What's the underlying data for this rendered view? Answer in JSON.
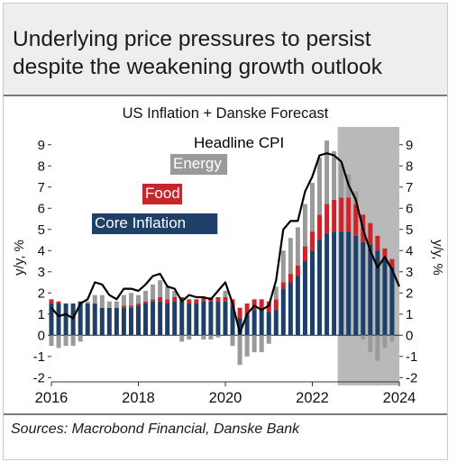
{
  "headline": "Underlying price pressures to persist despite the weakening growth outlook",
  "source": "Sources: Macrobond Financial, Danske Bank",
  "colors": {
    "core": "#1d3f68",
    "food": "#c8262b",
    "energy": "#9a9a9a",
    "headline": "#000000",
    "forecast_shade": "#b9b9b9",
    "header_bg": "#eeeeee"
  },
  "chart_data": {
    "type": "bar",
    "stacked": true,
    "title": "US Inflation + Danske Forecast",
    "ylabel_left": "y/y, %",
    "ylabel_right": "y/y, %",
    "ylim": [
      -2.2,
      9.5
    ],
    "yticks": [
      "-2",
      "-1",
      "0",
      "1",
      "2",
      "3",
      "4",
      "5",
      "6",
      "7",
      "8",
      "9"
    ],
    "xticks": [
      "2016",
      "2018",
      "2020",
      "2022",
      "2024"
    ],
    "xlim": [
      "2016-01",
      "2024-01"
    ],
    "forecast_shade": {
      "from": "2022-08",
      "to": "2024-01",
      "label": "Danske Forecast"
    },
    "annotations": [
      {
        "text": "Headline CPI",
        "series": "headline",
        "color": "#000000",
        "text_color": "#000000"
      },
      {
        "text": "Energy",
        "series": "energy",
        "color": "#9a9a9a",
        "text_color": "#ffffff"
      },
      {
        "text": "Food",
        "series": "food",
        "color": "#c8262b",
        "text_color": "#ffffff"
      },
      {
        "text": "Core Inflation",
        "series": "core",
        "color": "#1d3f68",
        "text_color": "#ffffff"
      }
    ],
    "x": [
      "2016-01",
      "2016-03",
      "2016-05",
      "2016-07",
      "2016-09",
      "2016-11",
      "2017-01",
      "2017-03",
      "2017-05",
      "2017-07",
      "2017-09",
      "2017-11",
      "2018-01",
      "2018-03",
      "2018-05",
      "2018-07",
      "2018-09",
      "2018-11",
      "2019-01",
      "2019-03",
      "2019-05",
      "2019-07",
      "2019-09",
      "2019-11",
      "2020-01",
      "2020-03",
      "2020-05",
      "2020-07",
      "2020-09",
      "2020-11",
      "2021-01",
      "2021-03",
      "2021-05",
      "2021-07",
      "2021-09",
      "2021-11",
      "2022-01",
      "2022-03",
      "2022-05",
      "2022-07",
      "2022-09",
      "2022-11",
      "2023-01",
      "2023-03",
      "2023-05",
      "2023-07",
      "2023-09",
      "2023-11"
    ],
    "series": [
      {
        "key": "core",
        "name": "Core Inflation",
        "values": [
          1.5,
          1.5,
          1.5,
          1.5,
          1.6,
          1.5,
          1.5,
          1.3,
          1.3,
          1.3,
          1.3,
          1.3,
          1.4,
          1.5,
          1.6,
          1.6,
          1.5,
          1.6,
          1.6,
          1.5,
          1.5,
          1.6,
          1.6,
          1.6,
          1.6,
          1.4,
          0.8,
          1.0,
          1.2,
          1.2,
          1.1,
          1.2,
          2.2,
          2.5,
          2.8,
          3.5,
          4.0,
          4.5,
          4.8,
          4.9,
          4.9,
          4.9,
          4.7,
          4.4,
          4.3,
          4.0,
          3.6,
          3.2
        ]
      },
      {
        "key": "food",
        "name": "Food",
        "values": [
          0.2,
          0.1,
          0.0,
          0.0,
          0.0,
          0.0,
          0.0,
          0.0,
          0.0,
          0.0,
          0.1,
          0.1,
          0.1,
          0.1,
          0.1,
          0.2,
          0.2,
          0.2,
          0.2,
          0.2,
          0.2,
          0.2,
          0.2,
          0.2,
          0.2,
          0.3,
          0.5,
          0.5,
          0.5,
          0.5,
          0.5,
          0.5,
          0.3,
          0.4,
          0.5,
          0.7,
          0.9,
          1.2,
          1.4,
          1.5,
          1.6,
          1.6,
          1.5,
          1.3,
          1.0,
          0.7,
          0.5,
          0.4
        ]
      },
      {
        "key": "energy",
        "name": "Energy",
        "values": [
          -0.5,
          -0.6,
          -0.5,
          -0.5,
          -0.3,
          0.1,
          0.4,
          0.6,
          0.3,
          0.3,
          0.5,
          0.6,
          0.4,
          0.5,
          0.7,
          0.8,
          0.6,
          0.3,
          -0.3,
          -0.2,
          0.0,
          -0.2,
          -0.2,
          -0.1,
          0.3,
          -0.5,
          -1.4,
          -1.0,
          -0.8,
          -0.8,
          -0.4,
          0.6,
          1.5,
          1.7,
          1.8,
          2.0,
          2.3,
          2.7,
          3.0,
          2.3,
          1.6,
          1.1,
          0.6,
          -0.2,
          -0.8,
          -1.2,
          -0.6,
          -0.3
        ]
      },
      {
        "key": "headline",
        "name": "Headline CPI",
        "type": "line",
        "values": [
          1.3,
          0.9,
          1.0,
          0.8,
          1.5,
          1.7,
          2.5,
          2.4,
          1.9,
          1.7,
          2.2,
          2.2,
          2.1,
          2.4,
          2.8,
          2.9,
          2.3,
          2.2,
          1.6,
          1.9,
          1.8,
          1.8,
          1.7,
          2.1,
          2.5,
          1.5,
          0.1,
          1.0,
          1.4,
          1.2,
          1.4,
          2.6,
          5.0,
          5.4,
          5.4,
          6.8,
          7.5,
          8.5,
          8.6,
          8.5,
          8.2,
          7.1,
          6.4,
          5.0,
          4.0,
          3.2,
          3.7,
          3.1
        ]
      },
      {
        "key": "headline_forecast",
        "name": "Headline CPI",
        "type": "line",
        "forecast": true,
        "x": [
          "2023-09",
          "2023-11",
          "2024-01"
        ],
        "values": [
          3.7,
          3.1,
          2.3
        ]
      }
    ]
  }
}
